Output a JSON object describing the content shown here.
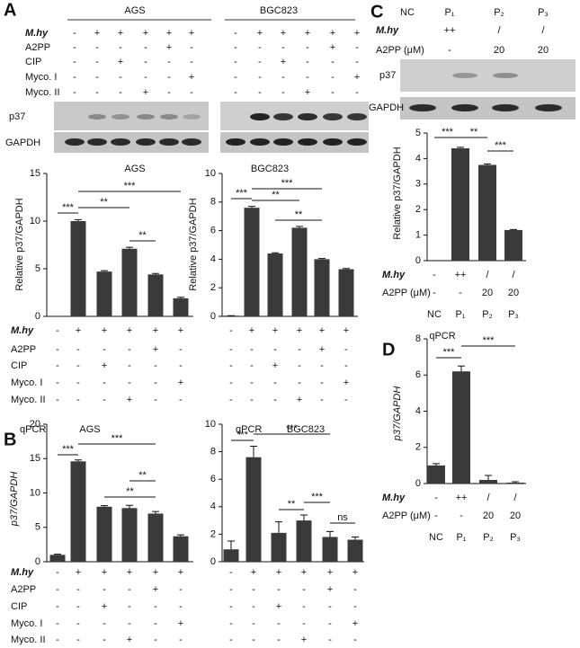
{
  "panel_labels": [
    "A",
    "B",
    "C",
    "D"
  ],
  "blot_A": {
    "groups": [
      "AGS",
      "BGC823"
    ],
    "bands": [
      "p37",
      "GAPDH"
    ],
    "rows": [
      {
        "label": "M.hy",
        "values": [
          "-",
          "+",
          "+",
          "+",
          "+",
          "+",
          "-",
          "+",
          "+",
          "+",
          "+",
          "+"
        ]
      },
      {
        "label": "A2PP",
        "values": [
          "-",
          "-",
          "-",
          "-",
          "+",
          "-",
          "-",
          "-",
          "-",
          "-",
          "+",
          "-"
        ]
      },
      {
        "label": "CIP",
        "values": [
          "-",
          "-",
          "+",
          "-",
          "-",
          "-",
          "-",
          "-",
          "+",
          "-",
          "-",
          "-"
        ]
      },
      {
        "label": "Myco. I",
        "values": [
          "-",
          "-",
          "-",
          "-",
          "-",
          "+",
          "-",
          "-",
          "-",
          "-",
          "-",
          "+"
        ]
      },
      {
        "label": "Myco. II",
        "values": [
          "-",
          "-",
          "-",
          "+",
          "-",
          "-",
          "-",
          "-",
          "-",
          "+",
          "-",
          "-"
        ]
      }
    ]
  },
  "blot_C": {
    "columns": [
      "NC",
      "P₁",
      "P₂",
      "P₃"
    ],
    "bands": [
      "p37",
      "GAPDH"
    ],
    "rows": [
      {
        "label": "M.hy",
        "values": [
          null,
          "++",
          "/",
          "/"
        ]
      },
      {
        "label": "A2PP (μM)",
        "values": [
          null,
          "-",
          "20",
          "20"
        ]
      }
    ]
  },
  "chart_data": [
    {
      "type": "bar",
      "title": "AGS",
      "y_label": "Relative p37/GAPDH",
      "color": "#3a3a3a",
      "values": [
        0,
        10.0,
        4.7,
        7.1,
        4.4,
        1.9
      ],
      "errors": [
        0,
        0.15,
        0.1,
        0.15,
        0.1,
        0.1
      ],
      "ylim": [
        0,
        15
      ],
      "yticks": [
        0,
        5,
        10,
        15
      ],
      "annotations": [
        "***",
        "***",
        "**",
        "**"
      ],
      "treatments": [
        {
          "label": "M.hy",
          "values": [
            "-",
            "+",
            "+",
            "+",
            "+",
            "+"
          ]
        },
        {
          "label": "A2PP",
          "values": [
            "-",
            "-",
            "-",
            "-",
            "+",
            "-"
          ]
        },
        {
          "label": "CIP",
          "values": [
            "-",
            "-",
            "+",
            "-",
            "-",
            "-"
          ]
        },
        {
          "label": "Myco. I",
          "values": [
            "-",
            "-",
            "-",
            "-",
            "-",
            "+"
          ]
        },
        {
          "label": "Myco. II",
          "values": [
            "-",
            "-",
            "-",
            "+",
            "-",
            "-"
          ]
        }
      ]
    },
    {
      "type": "bar",
      "title": "BGC823",
      "y_label": "Relative p37/GAPDH",
      "color": "#3a3a3a",
      "values": [
        0.05,
        7.6,
        4.4,
        6.2,
        4.0,
        3.3
      ],
      "errors": [
        0,
        0.1,
        0.05,
        0.1,
        0.05,
        0.05
      ],
      "ylim": [
        0,
        10
      ],
      "yticks": [
        0,
        2,
        4,
        6,
        8,
        10
      ],
      "annotations": [
        "***",
        "***",
        "**",
        "**"
      ],
      "treatments": [
        {
          "values": [
            "-",
            "+",
            "+",
            "+",
            "+",
            "+"
          ]
        },
        {
          "values": [
            "-",
            "-",
            "-",
            "-",
            "+",
            "-"
          ]
        },
        {
          "values": [
            "-",
            "-",
            "+",
            "-",
            "-",
            "-"
          ]
        },
        {
          "values": [
            "-",
            "-",
            "-",
            "-",
            "-",
            "+"
          ]
        },
        {
          "values": [
            "-",
            "-",
            "-",
            "+",
            "-",
            "-"
          ]
        }
      ]
    },
    {
      "type": "bar",
      "title": "AGS",
      "subtitle": "qPCR",
      "y_label": "p37/GAPDH",
      "color": "#3a3a3a",
      "values": [
        1.0,
        14.6,
        8.0,
        7.8,
        7.0,
        3.7
      ],
      "errors": [
        0.1,
        0.2,
        0.15,
        0.4,
        0.3,
        0.2
      ],
      "ylim": [
        0,
        20
      ],
      "yticks": [
        0,
        5,
        10,
        15,
        20
      ],
      "annotations": [
        "***",
        "***",
        "**",
        "**"
      ],
      "treatments": [
        {
          "label": "M.hy",
          "values": [
            "-",
            "+",
            "+",
            "+",
            "+",
            "+"
          ]
        },
        {
          "label": "A2PP",
          "values": [
            "-",
            "-",
            "-",
            "-",
            "+",
            "-"
          ]
        },
        {
          "label": "CIP",
          "values": [
            "-",
            "-",
            "+",
            "-",
            "-",
            "-"
          ]
        },
        {
          "label": "Myco. I",
          "values": [
            "-",
            "-",
            "-",
            "-",
            "-",
            "+"
          ]
        },
        {
          "label": "Myco. II",
          "values": [
            "-",
            "-",
            "-",
            "+",
            "-",
            "-"
          ]
        }
      ]
    },
    {
      "type": "bar",
      "title": "BGC823",
      "subtitle": "qPCR",
      "color": "#3a3a3a",
      "values": [
        0.9,
        7.6,
        2.1,
        3.0,
        1.8,
        1.6
      ],
      "errors": [
        0.6,
        0.8,
        0.8,
        0.4,
        0.4,
        0.2
      ],
      "ylim": [
        0,
        10
      ],
      "yticks": [
        0,
        2,
        4,
        6,
        8,
        10
      ],
      "annotations": [
        "***",
        "***",
        "**",
        "***",
        "ns"
      ],
      "treatments": [
        {
          "values": [
            "-",
            "+",
            "+",
            "+",
            "+",
            "+"
          ]
        },
        {
          "values": [
            "-",
            "-",
            "-",
            "-",
            "+",
            "-"
          ]
        },
        {
          "values": [
            "-",
            "-",
            "+",
            "-",
            "-",
            "-"
          ]
        },
        {
          "values": [
            "-",
            "-",
            "-",
            "-",
            "-",
            "+"
          ]
        },
        {
          "values": [
            "-",
            "-",
            "-",
            "+",
            "-",
            "-"
          ]
        }
      ]
    },
    {
      "type": "bar",
      "y_label": "Relative p37/GAPDH",
      "color": "#3a3a3a",
      "values": [
        0,
        4.4,
        3.75,
        1.2
      ],
      "errors": [
        0,
        0.04,
        0.04,
        0.02
      ],
      "ylim": [
        0,
        5
      ],
      "yticks": [
        0,
        1,
        2,
        3,
        4,
        5
      ],
      "annotations": [
        "***",
        "**",
        "***"
      ],
      "treatments": [
        {
          "label": "M.hy",
          "values": [
            "-",
            "++",
            "/",
            "/"
          ]
        },
        {
          "label": "A2PP (μM)",
          "values": [
            "-",
            "-",
            "20",
            "20"
          ]
        }
      ],
      "columns": [
        "NC",
        "P₁",
        "P₂",
        "P₃"
      ]
    },
    {
      "type": "bar",
      "title": "qPCR",
      "y_label": "p37/GAPDH",
      "color": "#3a3a3a",
      "values": [
        1.0,
        6.2,
        0.2,
        0.05
      ],
      "errors": [
        0.1,
        0.3,
        0.25,
        0.05
      ],
      "ylim": [
        0,
        8
      ],
      "yticks": [
        0,
        2,
        4,
        6,
        8
      ],
      "annotations": [
        "***",
        "***"
      ],
      "treatments": [
        {
          "label": "M.hy",
          "values": [
            "-",
            "++",
            "/",
            "/"
          ]
        },
        {
          "label": "A2PP (μM)",
          "values": [
            "-",
            "-",
            "20",
            "20"
          ]
        }
      ],
      "columns": [
        "NC",
        "P₁",
        "P₂",
        "P₃"
      ]
    }
  ]
}
